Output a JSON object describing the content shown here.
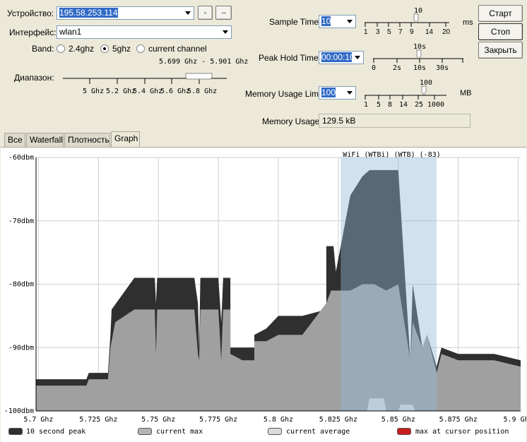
{
  "form": {
    "device_label": "Устройство:",
    "device_value": "195.58.253.114",
    "small_button_1": "▫",
    "small_button_2": "...",
    "interface_label": "Интерфейс:",
    "interface_value": "wlan1",
    "band_label": "Band:",
    "band_options": [
      "2.4ghz",
      "5ghz",
      "current channel"
    ],
    "band_selected": "5ghz",
    "range_label": "Диапазон:",
    "range_value": "5.699 Ghz - 5.901 Ghz",
    "range_ticks": [
      "5 Ghz",
      "5.2 Ghz",
      "5.4 Ghz",
      "5.6 Ghz",
      "5.8 Ghz"
    ],
    "sample_time_label": "Sample Time:",
    "sample_time_value": "10",
    "sample_time_unit": "ms",
    "sample_time_slider_value": "10",
    "sample_time_ticks": [
      "1",
      "3",
      "5",
      "7",
      "9",
      "14",
      "20"
    ],
    "peak_hold_label": "Peak Hold Time:",
    "peak_hold_value": "00:00:10",
    "peak_hold_slider_value": "10s",
    "peak_hold_ticks": [
      "0",
      "2s",
      "10s",
      "30s"
    ],
    "mem_limit_label": "Memory Usage Limit:",
    "mem_limit_value": "100",
    "mem_limit_unit": "MB",
    "mem_limit_slider_value": "100",
    "mem_limit_ticks": [
      "1",
      "5",
      "8",
      "14",
      "25",
      "1000"
    ],
    "mem_usage_label": "Memory Usage:",
    "mem_usage_value": "129.5 kB"
  },
  "buttons": {
    "start": "Старт",
    "stop": "Стоп",
    "close": "Закрыть"
  },
  "tabs": [
    "Все",
    "Waterfall",
    "Плотность",
    "Graph"
  ],
  "active_tab": "Graph",
  "chart_data": {
    "type": "area",
    "y_ticks": [
      "-60dbm",
      "-70dbm",
      "-80dbm",
      "-90dbm",
      "-100dbm"
    ],
    "ylim": [
      -100,
      -60
    ],
    "x_ticks": [
      "5.7 Ghz",
      "5.725 Ghz",
      "5.75 Ghz",
      "5.775 Ghz",
      "5.8 Ghz",
      "5.825 Ghz",
      "5.85 Ghz",
      "5.875 Ghz",
      "5.9 Ghz"
    ],
    "xlim": [
      5.699,
      5.901
    ],
    "highlight_label": "WiFi (WTBi) (WTB) (-83)",
    "highlight_range": [
      5.826,
      5.866
    ],
    "legend": [
      {
        "label": "10 second peak",
        "color": "#2f2f2f"
      },
      {
        "label": "current max",
        "color": "#b4b4b4"
      },
      {
        "label": "current average",
        "color": "#dcdcdc"
      },
      {
        "label": "max at cursor position",
        "color": "#c81e1e"
      }
    ],
    "peak_series": {
      "x": [
        5.699,
        5.71,
        5.72,
        5.721,
        5.729,
        5.73,
        5.7305,
        5.74,
        5.7485,
        5.749,
        5.7495,
        5.755,
        5.765,
        5.7665,
        5.767,
        5.7675,
        5.773,
        5.775,
        5.7762,
        5.777,
        5.78,
        5.78,
        5.785,
        5.79,
        5.79,
        5.79,
        5.795,
        5.8,
        5.81,
        5.82,
        5.82,
        5.823,
        5.824,
        5.826,
        5.83,
        5.835,
        5.838,
        5.845,
        5.85,
        5.855,
        5.856,
        5.86,
        5.862,
        5.866,
        5.868,
        5.875,
        5.88,
        5.89,
        5.901
      ],
      "y": [
        -95,
        -95,
        -95,
        -94,
        -94,
        -88,
        -84,
        -79,
        -79,
        -83,
        -79,
        -79,
        -79,
        -83,
        -90,
        -79,
        -79,
        -79,
        -86,
        -79,
        -79,
        -90,
        -90,
        -90,
        -94,
        -88,
        -87,
        -85,
        -85,
        -84,
        -74,
        -74,
        -78,
        -74,
        -66,
        -63,
        -62,
        -62,
        -62,
        -92,
        -80,
        -90,
        -88,
        -93,
        -90,
        -91,
        -91,
        -91,
        -92
      ]
    },
    "max_series": {
      "x": [
        5.699,
        5.71,
        5.72,
        5.721,
        5.729,
        5.73,
        5.732,
        5.74,
        5.7485,
        5.749,
        5.7495,
        5.755,
        5.765,
        5.7665,
        5.767,
        5.7675,
        5.773,
        5.775,
        5.7762,
        5.777,
        5.78,
        5.78,
        5.785,
        5.79,
        5.79,
        5.79,
        5.795,
        5.8,
        5.81,
        5.82,
        5.822,
        5.826,
        5.83,
        5.835,
        5.84,
        5.845,
        5.85,
        5.855,
        5.856,
        5.86,
        5.862,
        5.866,
        5.868,
        5.875,
        5.88,
        5.89,
        5.901
      ],
      "y": [
        -96,
        -96,
        -96,
        -95,
        -95,
        -90,
        -86,
        -84,
        -84,
        -91,
        -84,
        -84,
        -84,
        -91,
        -92,
        -84,
        -84,
        -84,
        -92,
        -84,
        -84,
        -91,
        -92,
        -92,
        -95,
        -89,
        -89,
        -88,
        -88,
        -83,
        -81,
        -81,
        -81,
        -80,
        -80,
        -81,
        -80,
        -92,
        -86,
        -90,
        -88,
        -94,
        -91,
        -92,
        -92,
        -92,
        -93
      ]
    },
    "average_series": {
      "x": [
        5.837,
        5.838,
        5.844,
        5.845,
        5.85,
        5.851,
        5.856,
        5.857
      ],
      "y": [
        -100,
        -98,
        -98,
        -100,
        -100,
        -99,
        -99,
        -100
      ]
    }
  }
}
